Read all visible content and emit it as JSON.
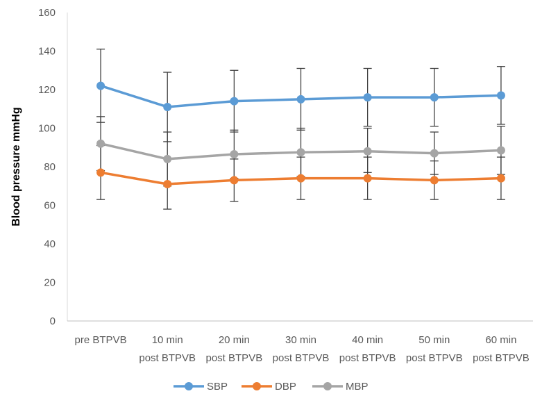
{
  "chart_data": {
    "type": "line",
    "title": "",
    "xlabel": "",
    "ylabel": "Blood pressure mmHg",
    "ylim": [
      0,
      160
    ],
    "yticks": [
      0,
      20,
      40,
      60,
      80,
      100,
      120,
      140,
      160
    ],
    "grid": false,
    "legend_position": "bottom",
    "categories": [
      [
        "pre BTPVB"
      ],
      [
        "10 min",
        "post BTPVB"
      ],
      [
        "20 min",
        "post BTPVB"
      ],
      [
        "30 min",
        "post BTPVB"
      ],
      [
        "40 min",
        "post BTPVB"
      ],
      [
        "50 min",
        "post BTPVB"
      ],
      [
        "60 min",
        "post BTPVB"
      ]
    ],
    "series": [
      {
        "name": "SBP",
        "color": "#5B9BD5",
        "values": [
          122,
          111,
          114,
          115,
          116,
          116,
          117
        ],
        "error_low": [
          103,
          93,
          98,
          99,
          101,
          101,
          102
        ],
        "error_high": [
          141,
          129,
          130,
          131,
          131,
          131,
          132
        ]
      },
      {
        "name": "DBP",
        "color": "#ED7D31",
        "values": [
          77,
          71,
          73,
          74,
          74,
          73,
          74
        ],
        "error_low": [
          63,
          58,
          62,
          63,
          63,
          63,
          63
        ],
        "error_high": [
          91,
          84,
          84,
          85,
          85,
          83,
          85
        ]
      },
      {
        "name": "MBP",
        "color": "#A5A5A5",
        "values": [
          92,
          84,
          86.5,
          87.5,
          88,
          87,
          88.5
        ],
        "error_low": [
          78,
          70,
          74,
          75,
          77,
          76,
          76
        ],
        "error_high": [
          106,
          98,
          99,
          100,
          100,
          98,
          101
        ]
      }
    ]
  }
}
